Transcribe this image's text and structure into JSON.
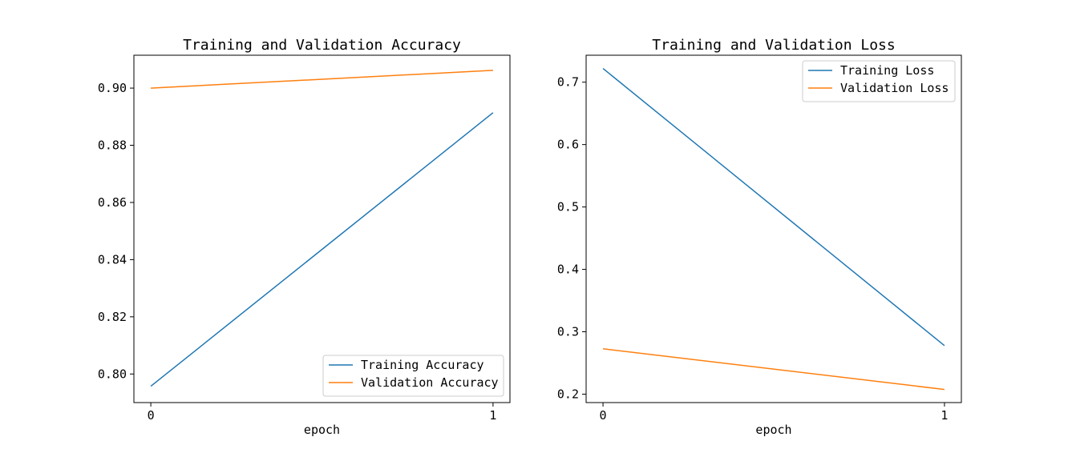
{
  "chart_data": [
    {
      "type": "line",
      "title": "Training and Validation Accuracy",
      "xlabel": "epoch",
      "ylabel": "",
      "x": [
        0,
        1
      ],
      "xticks": [
        "0",
        "1"
      ],
      "ylim": [
        0.79,
        0.9115
      ],
      "yticks": [
        0.8,
        0.82,
        0.84,
        0.86,
        0.88,
        0.9
      ],
      "ytick_labels": [
        "0.80",
        "0.82",
        "0.84",
        "0.86",
        "0.88",
        "0.90"
      ],
      "grid": false,
      "legend_position": "bottom-right",
      "series": [
        {
          "name": "Training Accuracy",
          "color": "#1f77b4",
          "values": [
            0.7957,
            0.8914
          ]
        },
        {
          "name": "Validation Accuracy",
          "color": "#ff7f0e",
          "values": [
            0.9,
            0.9062
          ]
        }
      ]
    },
    {
      "type": "line",
      "title": "Training and Validation Loss",
      "xlabel": "epoch",
      "ylabel": "",
      "x": [
        0,
        1
      ],
      "xticks": [
        "0",
        "1"
      ],
      "ylim": [
        0.1865,
        0.7432
      ],
      "yticks": [
        0.2,
        0.3,
        0.4,
        0.5,
        0.6,
        0.7
      ],
      "ytick_labels": [
        "0.2",
        "0.3",
        "0.4",
        "0.5",
        "0.6",
        "0.7"
      ],
      "grid": false,
      "legend_position": "top-right",
      "series": [
        {
          "name": "Training Loss",
          "color": "#1f77b4",
          "values": [
            0.7219,
            0.2778
          ]
        },
        {
          "name": "Validation Loss",
          "color": "#ff7f0e",
          "values": [
            0.2727,
            0.2075
          ]
        }
      ]
    }
  ]
}
